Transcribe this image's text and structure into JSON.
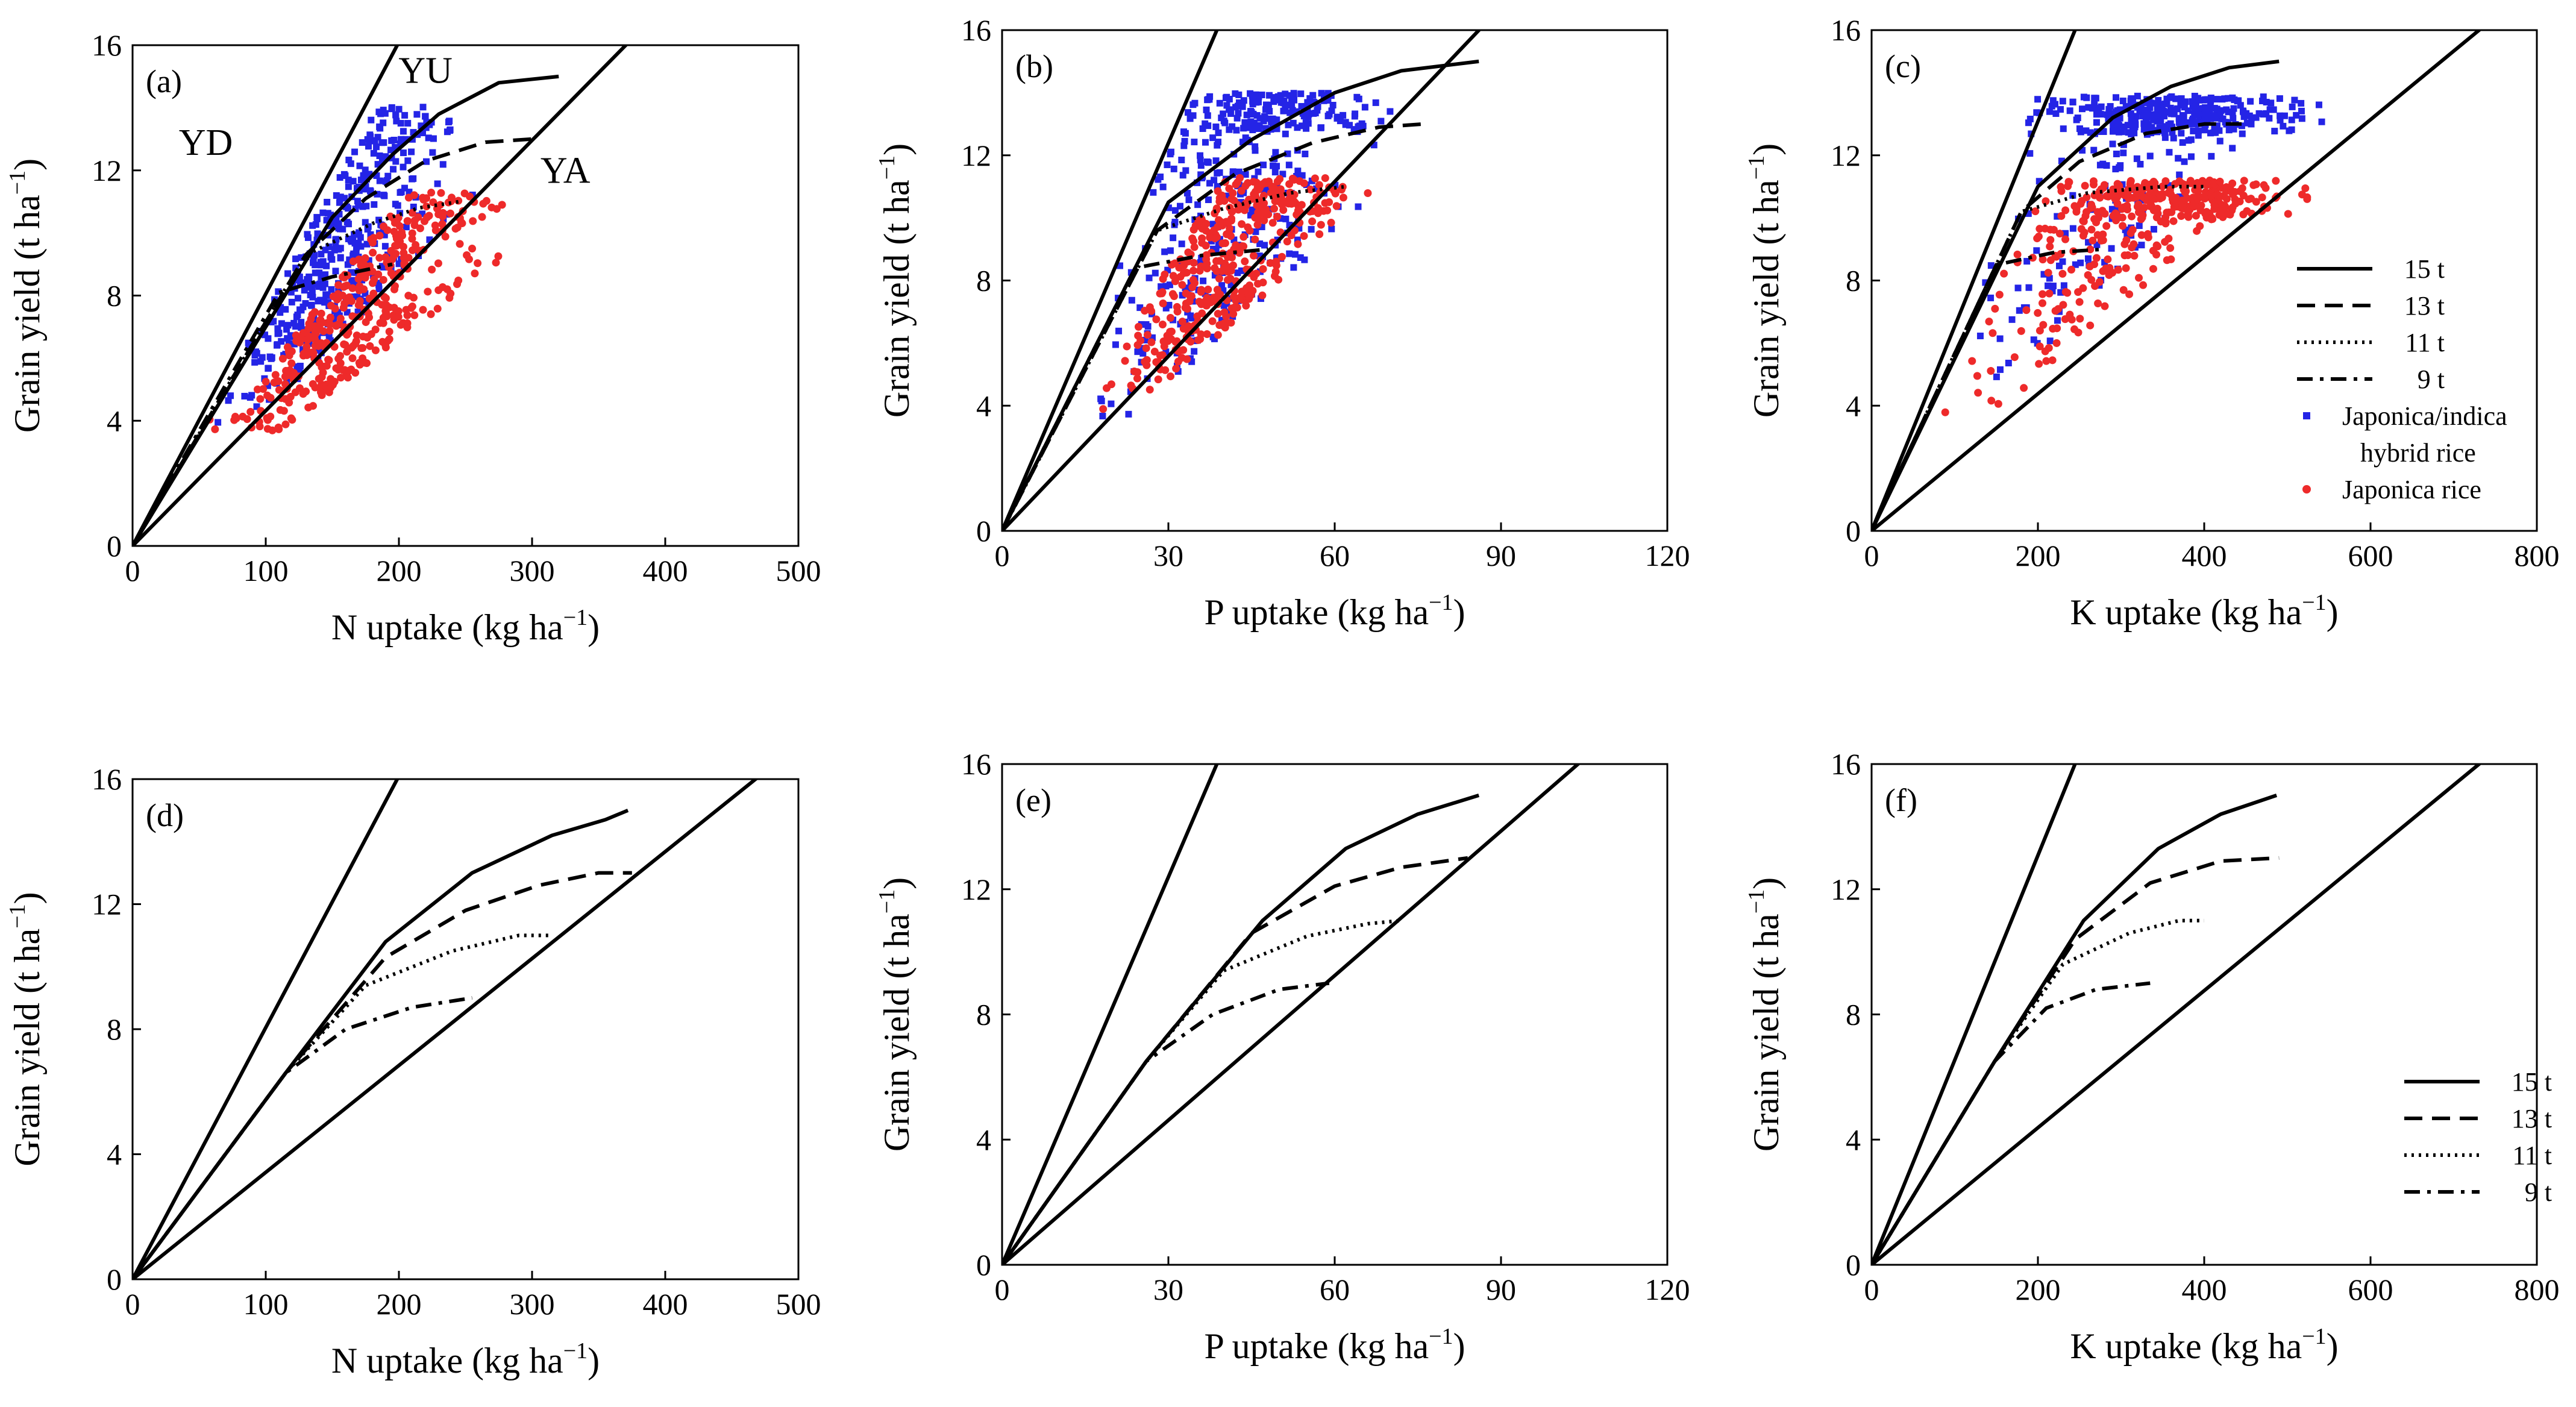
{
  "chart_data": [
    {
      "panel": "(a)",
      "type": "scatter",
      "nutrient": "N",
      "scatter": true,
      "xlabel": "N uptake (kg ha",
      "ylabel": "Grain yield (t ha",
      "xlim": [
        0,
        500
      ],
      "ylim": [
        0,
        16
      ],
      "xticks": [
        0,
        100,
        200,
        300,
        400,
        500
      ],
      "yticks": [
        0,
        4,
        8,
        12,
        16
      ],
      "boundaries": [
        {
          "name": "YD",
          "slope": 0.0805,
          "label": "YD",
          "label_at": [
            55,
            12.5
          ]
        },
        {
          "name": "YA",
          "slope": 0.0432,
          "label": "YA",
          "label_at": [
            325,
            11.6
          ]
        }
      ],
      "yu_curves": [
        {
          "name": "15 t",
          "style": "solid",
          "points": [
            [
              150,
              10.5
            ],
            [
              195,
              12.5
            ],
            [
              230,
              13.8
            ],
            [
              275,
              14.8
            ],
            [
              320,
              15
            ]
          ]
        },
        {
          "name": "13 t",
          "style": "dashed",
          "points": [
            [
              130,
              9.3
            ],
            [
              175,
              11.1
            ],
            [
              220,
              12.3
            ],
            [
              265,
              12.9
            ],
            [
              300,
              13
            ]
          ]
        },
        {
          "name": "11 t",
          "style": "dotted",
          "points": [
            [
              130,
              9.3
            ],
            [
              180,
              10.3
            ],
            [
              215,
              10.8
            ],
            [
              245,
              11
            ]
          ]
        },
        {
          "name": "9 t",
          "style": "dashdot",
          "points": [
            [
              110,
              8.1
            ],
            [
              150,
              8.6
            ],
            [
              195,
              9
            ]
          ]
        }
      ],
      "curve_labels": [
        {
          "text": "YU",
          "at": [
            220,
            14.8
          ]
        }
      ],
      "clusters": [
        {
          "series": "Japonica/indica hybrid rice",
          "color": "#2424e6",
          "shape": "square",
          "n": 420,
          "seed": 11,
          "xr": [
            55,
            265
          ],
          "lo": 0.043,
          "hi": 0.076,
          "cap": 14.1
        },
        {
          "series": "Japonica rice",
          "color": "#ee2a2a",
          "shape": "circle",
          "n": 400,
          "seed": 23,
          "xr": [
            45,
            300
          ],
          "lo": 0.033,
          "hi": 0.055,
          "cap": 11.3
        }
      ]
    },
    {
      "panel": "(b)",
      "type": "scatter",
      "nutrient": "P",
      "scatter": true,
      "xlabel": "P uptake (kg ha",
      "ylabel": "Grain yield (t ha",
      "xlim": [
        0,
        120
      ],
      "ylim": [
        0,
        16
      ],
      "xticks": [
        0,
        30,
        60,
        90,
        120
      ],
      "yticks": [
        0,
        4,
        8,
        12,
        16
      ],
      "boundaries": [
        {
          "name": "YD",
          "slope": 0.413
        },
        {
          "name": "YA",
          "slope": 0.186
        }
      ],
      "yu_curves": [
        {
          "name": "15 t",
          "style": "solid",
          "points": [
            [
              30,
              10.5
            ],
            [
              45,
              12.5
            ],
            [
              60,
              14
            ],
            [
              72,
              14.7
            ],
            [
              86,
              15
            ]
          ]
        },
        {
          "name": "13 t",
          "style": "dashed",
          "points": [
            [
              28,
              9.6
            ],
            [
              42,
              11.4
            ],
            [
              56,
              12.4
            ],
            [
              68,
              12.9
            ],
            [
              76,
              13
            ]
          ]
        },
        {
          "name": "11 t",
          "style": "dotted",
          "points": [
            [
              28,
              9.6
            ],
            [
              40,
              10.3
            ],
            [
              52,
              10.8
            ],
            [
              62,
              11
            ]
          ]
        },
        {
          "name": "9 t",
          "style": "dashdot",
          "points": [
            [
              24,
              8.4
            ],
            [
              36,
              8.8
            ],
            [
              48,
              9
            ]
          ]
        }
      ],
      "clusters": [
        {
          "series": "Japonica/indica hybrid rice",
          "color": "#2424e6",
          "shape": "square",
          "n": 420,
          "seed": 31,
          "xr": [
            13,
            75
          ],
          "lo": 0.158,
          "hi": 0.4,
          "cap": 14
        },
        {
          "series": "Japonica rice",
          "color": "#ee2a2a",
          "shape": "circle",
          "n": 400,
          "seed": 37,
          "xr": [
            15,
            68
          ],
          "lo": 0.16,
          "hi": 0.28,
          "cap": 11.3
        }
      ]
    },
    {
      "panel": "(c)",
      "type": "scatter",
      "nutrient": "K",
      "scatter": true,
      "xlabel": "K uptake (kg ha",
      "ylabel": "Grain yield (t ha",
      "xlim": [
        0,
        800
      ],
      "ylim": [
        0,
        16
      ],
      "xticks": [
        0,
        200,
        400,
        600,
        800
      ],
      "yticks": [
        0,
        4,
        8,
        12,
        16
      ],
      "boundaries": [
        {
          "name": "YD",
          "slope": 0.0654
        },
        {
          "name": "YA",
          "slope": 0.0219
        }
      ],
      "yu_curves": [
        {
          "name": "15 t",
          "style": "solid",
          "points": [
            [
              200,
              11
            ],
            [
              290,
              13.2
            ],
            [
              360,
              14.2
            ],
            [
              430,
              14.8
            ],
            [
              490,
              15
            ]
          ]
        },
        {
          "name": "13 t",
          "style": "dashed",
          "points": [
            [
              180,
              10.2
            ],
            [
              250,
              11.8
            ],
            [
              330,
              12.7
            ],
            [
              400,
              13
            ],
            [
              445,
              13
            ]
          ]
        },
        {
          "name": "11 t",
          "style": "dotted",
          "points": [
            [
              180,
              10.2
            ],
            [
              260,
              10.8
            ],
            [
              350,
              11
            ],
            [
              400,
              11
            ]
          ]
        },
        {
          "name": "9 t",
          "style": "dashdot",
          "points": [
            [
              150,
              8.5
            ],
            [
              220,
              8.9
            ],
            [
              280,
              9
            ]
          ]
        }
      ],
      "clusters": [
        {
          "series": "Japonica/indica hybrid rice",
          "color": "#2424e6",
          "shape": "square",
          "n": 420,
          "seed": 41,
          "xr": [
            100,
            560
          ],
          "lo": 0.028,
          "hi": 0.072,
          "cap": 13.9
        },
        {
          "series": "Japonica rice",
          "color": "#ee2a2a",
          "shape": "circle",
          "n": 400,
          "seed": 47,
          "xr": [
            70,
            580
          ],
          "lo": 0.024,
          "hi": 0.052,
          "cap": 11.2
        }
      ]
    },
    {
      "panel": "(d)",
      "type": "line",
      "nutrient": "N",
      "scatter": false,
      "xlabel": "N uptake (kg ha",
      "ylabel": "Grain yield (t ha",
      "xlim": [
        0,
        500
      ],
      "ylim": [
        0,
        16
      ],
      "xticks": [
        0,
        100,
        200,
        300,
        400,
        500
      ],
      "yticks": [
        0,
        4,
        8,
        12,
        16
      ],
      "boundaries": [
        {
          "name": "YD",
          "slope": 0.0805
        },
        {
          "name": "YA",
          "slope": 0.0342
        }
      ],
      "yu_curves": [
        {
          "name": "15 t",
          "style": "solid",
          "points": [
            [
              115,
              6.6
            ],
            [
              190,
              10.8
            ],
            [
              255,
              13
            ],
            [
              315,
              14.2
            ],
            [
              355,
              14.7
            ],
            [
              372,
              15
            ]
          ]
        },
        {
          "name": "13 t",
          "style": "dashed",
          "points": [
            [
              115,
              6.6
            ],
            [
              190,
              10.3
            ],
            [
              250,
              11.8
            ],
            [
              305,
              12.6
            ],
            [
              350,
              13
            ],
            [
              375,
              13
            ]
          ]
        },
        {
          "name": "11 t",
          "style": "dotted",
          "points": [
            [
              115,
              6.6
            ],
            [
              175,
              9.4
            ],
            [
              240,
              10.5
            ],
            [
              290,
              11
            ],
            [
              315,
              11
            ]
          ]
        },
        {
          "name": "9 t",
          "style": "dashdot",
          "points": [
            [
              115,
              6.6
            ],
            [
              160,
              8
            ],
            [
              210,
              8.7
            ],
            [
              255,
              9
            ]
          ]
        }
      ]
    },
    {
      "panel": "(e)",
      "type": "line",
      "nutrient": "P",
      "scatter": false,
      "xlabel": "P uptake (kg ha",
      "ylabel": "Grain yield (t ha",
      "xlim": [
        0,
        120
      ],
      "ylim": [
        0,
        16
      ],
      "xticks": [
        0,
        30,
        60,
        90,
        120
      ],
      "yticks": [
        0,
        4,
        8,
        12,
        16
      ],
      "boundaries": [
        {
          "name": "YD",
          "slope": 0.413
        },
        {
          "name": "YA",
          "slope": 0.154
        }
      ],
      "yu_curves": [
        {
          "name": "15 t",
          "style": "solid",
          "points": [
            [
              26,
              6.5
            ],
            [
              47,
              11
            ],
            [
              62,
              13.3
            ],
            [
              75,
              14.4
            ],
            [
              86,
              15
            ]
          ]
        },
        {
          "name": "13 t",
          "style": "dashed",
          "points": [
            [
              26,
              6.5
            ],
            [
              45,
              10.6
            ],
            [
              60,
              12.1
            ],
            [
              72,
              12.7
            ],
            [
              84,
              13
            ]
          ]
        },
        {
          "name": "11 t",
          "style": "dotted",
          "points": [
            [
              26,
              6.5
            ],
            [
              40,
              9.4
            ],
            [
              55,
              10.5
            ],
            [
              66,
              10.9
            ],
            [
              72,
              11
            ]
          ]
        },
        {
          "name": "9 t",
          "style": "dashdot",
          "points": [
            [
              26,
              6.5
            ],
            [
              38,
              8
            ],
            [
              50,
              8.8
            ],
            [
              59,
              9
            ]
          ]
        }
      ]
    },
    {
      "panel": "(f)",
      "type": "line",
      "nutrient": "K",
      "scatter": false,
      "xlabel": "K uptake (kg ha",
      "ylabel": "Grain yield (t ha",
      "xlim": [
        0,
        800
      ],
      "ylim": [
        0,
        16
      ],
      "xticks": [
        0,
        200,
        400,
        600,
        800
      ],
      "yticks": [
        0,
        4,
        8,
        12,
        16
      ],
      "boundaries": [
        {
          "name": "YD",
          "slope": 0.0654
        },
        {
          "name": "YA",
          "slope": 0.0219
        }
      ],
      "yu_curves": [
        {
          "name": "15 t",
          "style": "solid",
          "points": [
            [
              148,
              6.5
            ],
            [
              255,
              11
            ],
            [
              345,
              13.3
            ],
            [
              420,
              14.4
            ],
            [
              487,
              15
            ]
          ]
        },
        {
          "name": "13 t",
          "style": "dashed",
          "points": [
            [
              148,
              6.5
            ],
            [
              245,
              10.4
            ],
            [
              335,
              12.2
            ],
            [
              420,
              12.9
            ],
            [
              490,
              13
            ]
          ]
        },
        {
          "name": "11 t",
          "style": "dotted",
          "points": [
            [
              148,
              6.5
            ],
            [
              230,
              9.6
            ],
            [
              310,
              10.6
            ],
            [
              370,
              11
            ],
            [
              400,
              11
            ]
          ]
        },
        {
          "name": "9 t",
          "style": "dashdot",
          "points": [
            [
              148,
              6.5
            ],
            [
              210,
              8.2
            ],
            [
              270,
              8.8
            ],
            [
              335,
              9
            ]
          ]
        }
      ]
    }
  ],
  "axis_unit_superscript": "−1",
  "legend_top": {
    "entries": [
      {
        "kind": "line",
        "style": "solid",
        "label": "15 t"
      },
      {
        "kind": "line",
        "style": "dashed",
        "label": "13 t"
      },
      {
        "kind": "line",
        "style": "dotted",
        "label": "11 t"
      },
      {
        "kind": "line",
        "style": "dashdot",
        "label": "9 t"
      },
      {
        "kind": "marker",
        "shape": "square",
        "color": "#2424e6",
        "label": "Japonica/indica",
        "label2": "hybrid rice"
      },
      {
        "kind": "marker",
        "shape": "circle",
        "color": "#ee2a2a",
        "label": "Japonica rice"
      }
    ]
  },
  "legend_bottom": {
    "entries": [
      {
        "kind": "line",
        "style": "solid",
        "label": "15 t"
      },
      {
        "kind": "line",
        "style": "dashed",
        "label": "13 t"
      },
      {
        "kind": "line",
        "style": "dotted",
        "label": "11 t"
      },
      {
        "kind": "line",
        "style": "dashdot",
        "label": "9 t"
      }
    ]
  }
}
